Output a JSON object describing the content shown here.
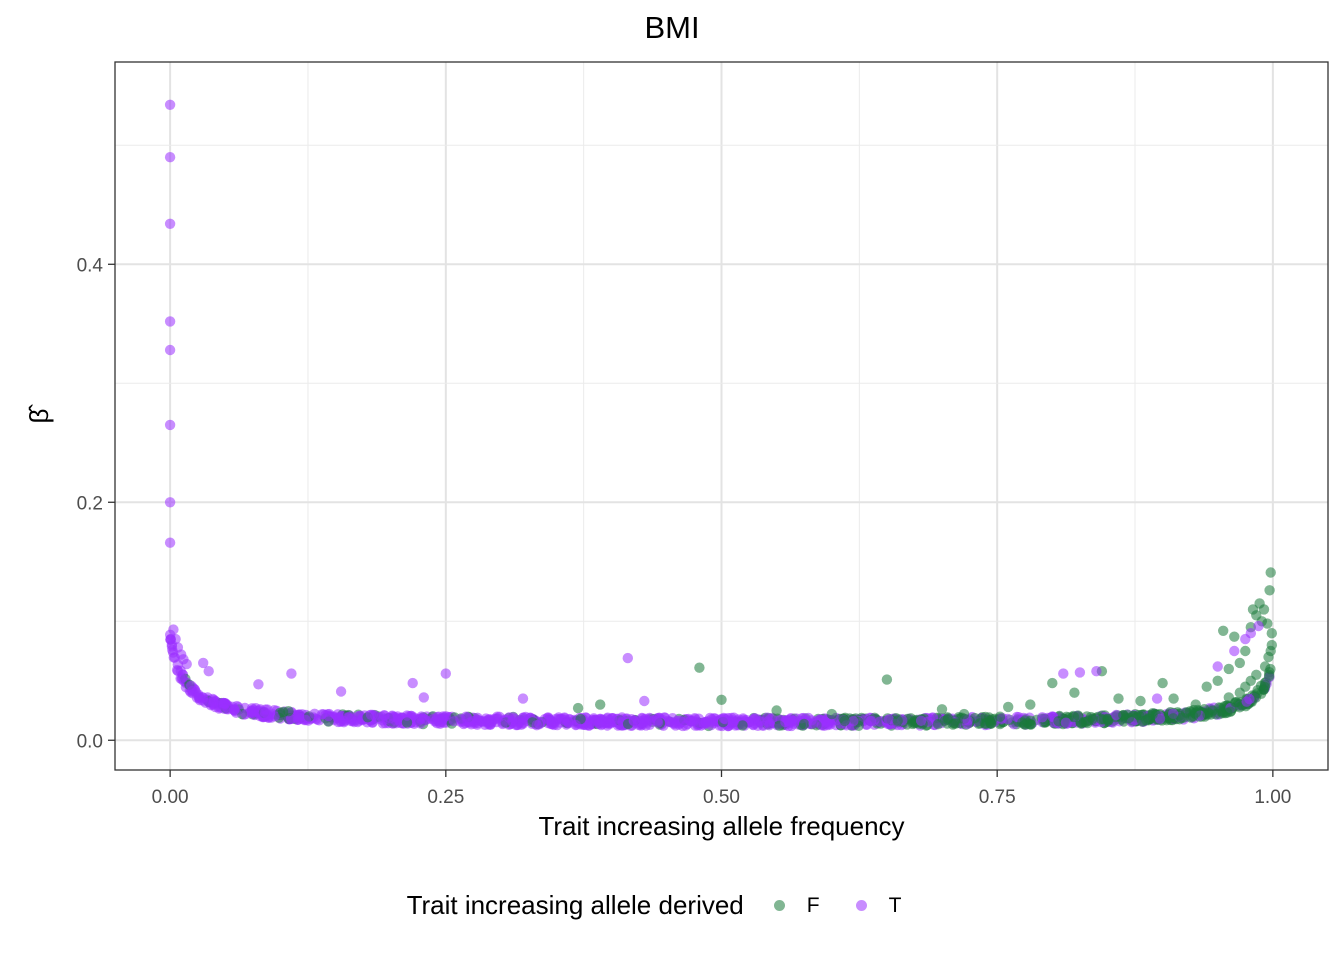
{
  "chart_data": {
    "type": "scatter",
    "title": "BMI",
    "xlabel": "Trait increasing allele frequency",
    "ylabel": "β̂",
    "xlim": [
      -0.05,
      1.05
    ],
    "ylim": [
      -0.025,
      0.57
    ],
    "x_ticks": [
      0,
      0.25,
      0.5,
      0.75,
      1
    ],
    "x_tick_labels": [
      "0.00",
      "0.25",
      "0.50",
      "0.75",
      "1.00"
    ],
    "y_ticks": [
      0,
      0.2,
      0.4
    ],
    "y_tick_labels": [
      "0.0",
      "0.2",
      "0.4"
    ],
    "grid": true,
    "legend_position": "bottom",
    "legend_title": "Trait increasing allele derived",
    "series": [
      {
        "name": "F",
        "color": "#1a7a3a",
        "points": [
          [
            0.48,
            0.061
          ],
          [
            0.65,
            0.051
          ],
          [
            0.8,
            0.048
          ],
          [
            0.82,
            0.04
          ],
          [
            0.845,
            0.058
          ],
          [
            0.5,
            0.034
          ],
          [
            0.39,
            0.03
          ],
          [
            0.37,
            0.027
          ],
          [
            0.55,
            0.025
          ],
          [
            0.6,
            0.022
          ],
          [
            0.7,
            0.026
          ],
          [
            0.72,
            0.022
          ],
          [
            0.76,
            0.028
          ],
          [
            0.78,
            0.03
          ],
          [
            0.86,
            0.035
          ],
          [
            0.88,
            0.033
          ],
          [
            0.9,
            0.048
          ],
          [
            0.91,
            0.035
          ],
          [
            0.93,
            0.03
          ],
          [
            0.94,
            0.045
          ],
          [
            0.95,
            0.05
          ],
          [
            0.955,
            0.092
          ],
          [
            0.96,
            0.06
          ],
          [
            0.965,
            0.087
          ],
          [
            0.97,
            0.065
          ],
          [
            0.975,
            0.075
          ],
          [
            0.98,
            0.095
          ],
          [
            0.982,
            0.11
          ],
          [
            0.985,
            0.105
          ],
          [
            0.988,
            0.115
          ],
          [
            0.99,
            0.1
          ],
          [
            0.992,
            0.11
          ],
          [
            0.995,
            0.098
          ],
          [
            0.997,
            0.126
          ],
          [
            0.998,
            0.141
          ],
          [
            0.999,
            0.09
          ],
          [
            0.999,
            0.08
          ],
          [
            0.998,
            0.075
          ],
          [
            0.996,
            0.07
          ],
          [
            0.993,
            0.062
          ],
          [
            0.985,
            0.055
          ],
          [
            0.98,
            0.05
          ],
          [
            0.975,
            0.045
          ],
          [
            0.97,
            0.04
          ],
          [
            0.96,
            0.036
          ]
        ]
      },
      {
        "name": "T",
        "color": "#9b30ff",
        "points": [
          [
            0.0,
            0.534
          ],
          [
            0.0,
            0.49
          ],
          [
            0.0,
            0.434
          ],
          [
            0.0,
            0.352
          ],
          [
            0.0,
            0.328
          ],
          [
            0.0,
            0.265
          ],
          [
            0.0,
            0.2
          ],
          [
            0.0,
            0.166
          ],
          [
            0.003,
            0.093
          ],
          [
            0.005,
            0.085
          ],
          [
            0.007,
            0.078
          ],
          [
            0.01,
            0.072
          ],
          [
            0.012,
            0.068
          ],
          [
            0.015,
            0.064
          ],
          [
            0.03,
            0.065
          ],
          [
            0.035,
            0.058
          ],
          [
            0.08,
            0.047
          ],
          [
            0.11,
            0.056
          ],
          [
            0.155,
            0.041
          ],
          [
            0.22,
            0.048
          ],
          [
            0.23,
            0.036
          ],
          [
            0.25,
            0.056
          ],
          [
            0.415,
            0.069
          ],
          [
            0.43,
            0.033
          ],
          [
            0.32,
            0.035
          ],
          [
            0.81,
            0.056
          ],
          [
            0.825,
            0.057
          ],
          [
            0.84,
            0.058
          ],
          [
            0.895,
            0.035
          ],
          [
            0.95,
            0.062
          ],
          [
            0.965,
            0.075
          ],
          [
            0.975,
            0.085
          ],
          [
            0.98,
            0.09
          ],
          [
            0.987,
            0.096
          ]
        ]
      }
    ]
  },
  "legend": {
    "title": "Trait increasing allele derived",
    "keys": [
      {
        "label": "F",
        "color": "#1a7a3a"
      },
      {
        "label": "T",
        "color": "#9b30ff"
      }
    ]
  }
}
